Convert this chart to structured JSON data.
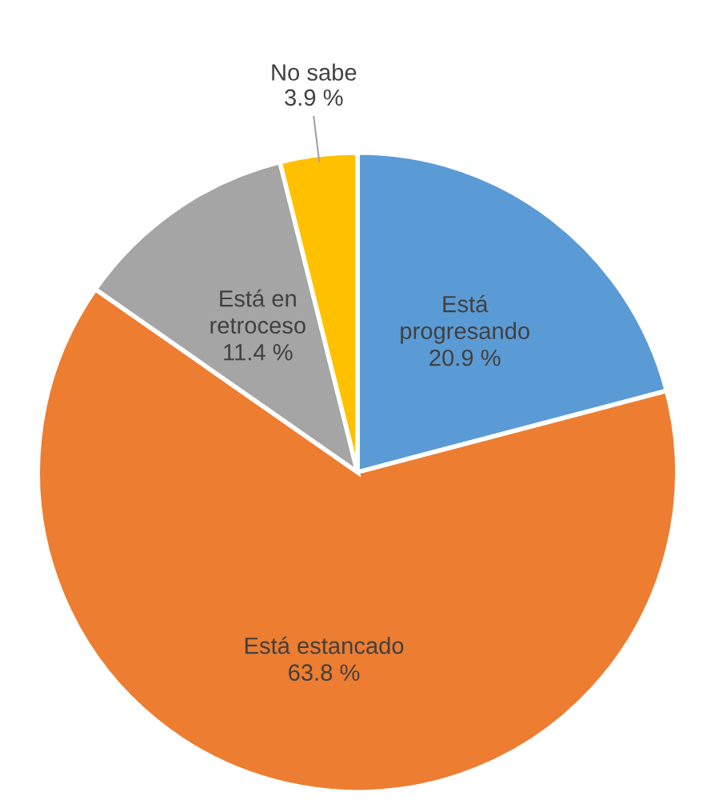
{
  "chart_data": {
    "type": "pie",
    "categories": [
      "Está\nprogresando",
      "Está estancado",
      "Está en\nretroceso",
      "No sabe"
    ],
    "values": [
      20.9,
      63.8,
      11.4,
      3.9
    ],
    "colors": [
      "#5b9bd5",
      "#ed7d31",
      "#a5a5a5",
      "#ffc000"
    ],
    "value_labels": [
      "20.9 %",
      "63.8 %",
      "11.4 %",
      "3.9 %"
    ],
    "legend": false
  }
}
